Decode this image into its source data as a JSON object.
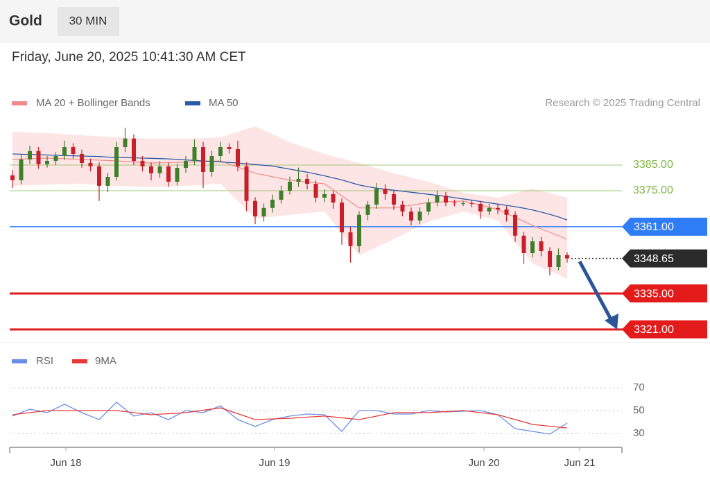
{
  "header": {
    "symbol": "Gold",
    "interval": "30 MIN",
    "timestamp": "Friday, June 20, 2025 10:41:30 AM CET"
  },
  "chart_data": [
    {
      "type": "candlestick",
      "source": "Research © 2025 Trading Central",
      "up_color": "#3f7f2a",
      "down_color": "#c8202a",
      "open": [
        3381.0,
        3379.1,
        3387.2,
        3390.4,
        3385.3,
        3386.6,
        3388.5,
        3392.0,
        3389.3,
        3385.8,
        3384.5,
        3376.9,
        3380.4,
        3392.0,
        3395.3,
        3386.6,
        3384.5,
        3381.8,
        3384.5,
        3378.5,
        3383.9,
        3386.6,
        3392.0,
        3382.3,
        3388.5,
        3392.0,
        3391.2,
        3384.5,
        3371.0,
        3365.0,
        3368.3,
        3371.5,
        3375.0,
        3378.5,
        3379.6,
        3377.7,
        3372.3,
        3373.7,
        3370.4,
        3358.8,
        3353.4,
        3365.6,
        3369.6,
        3375.8,
        3373.7,
        3369.6,
        3366.9,
        3363.4,
        3366.9,
        3370.4,
        3373.1,
        3370.4,
        3370.1,
        3370.1,
        3369.9,
        3366.9,
        3368.3,
        3367.7,
        3365.6,
        3357.5,
        3350.7,
        3355.3,
        3351.5,
        3345.3,
        3349.9
      ],
      "high": [
        3383,
        3389,
        3392.5,
        3392,
        3388.5,
        3390,
        3394.5,
        3393.5,
        3391,
        3387.5,
        3386,
        3382,
        3394,
        3399.5,
        3397,
        3388.5,
        3386,
        3386.5,
        3386,
        3385.5,
        3388.5,
        3395,
        3394,
        3390.5,
        3394,
        3393.5,
        3394.5,
        3386,
        3372.5,
        3370,
        3373.5,
        3377,
        3380.5,
        3384,
        3381.5,
        3379,
        3375.5,
        3375,
        3372,
        3361,
        3367,
        3371,
        3378,
        3377.5,
        3375,
        3371,
        3368.5,
        3368.5,
        3372,
        3375,
        3374.5,
        3371.5,
        3371,
        3371.5,
        3371,
        3370,
        3370,
        3369,
        3367,
        3359,
        3357,
        3357,
        3353,
        3352.5,
        3351
      ],
      "low": [
        3376,
        3377.5,
        3385.5,
        3383.5,
        3384,
        3385,
        3387,
        3387.5,
        3384,
        3382.5,
        3371,
        3374.5,
        3379,
        3390,
        3385,
        3382.5,
        3379,
        3380,
        3376.5,
        3377,
        3382,
        3385,
        3376,
        3380.5,
        3386.5,
        3389.5,
        3382.5,
        3367,
        3362,
        3363,
        3366.5,
        3370,
        3373.5,
        3376.5,
        3375.5,
        3370.5,
        3370.5,
        3368,
        3354,
        3347,
        3351,
        3363.5,
        3368,
        3371.5,
        3367.5,
        3365,
        3361.5,
        3362,
        3365.5,
        3369,
        3369,
        3369,
        3369,
        3368.5,
        3364,
        3365.5,
        3366,
        3363,
        3355,
        3346.5,
        3349,
        3349.5,
        3342,
        3344,
        3347
      ],
      "close": [
        3379.1,
        3387.2,
        3390.4,
        3385.3,
        3386.6,
        3388.5,
        3392.0,
        3389.3,
        3385.8,
        3384.5,
        3376.9,
        3380.4,
        3392.0,
        3395.3,
        3386.6,
        3384.5,
        3381.8,
        3384.5,
        3378.5,
        3383.9,
        3386.6,
        3392.0,
        3382.3,
        3388.5,
        3392.0,
        3391.2,
        3384.5,
        3371.0,
        3365.0,
        3368.3,
        3371.5,
        3375.0,
        3378.5,
        3379.6,
        3377.7,
        3372.3,
        3373.7,
        3370.4,
        3358.8,
        3353.4,
        3365.6,
        3369.6,
        3375.8,
        3373.7,
        3369.6,
        3366.9,
        3363.4,
        3366.9,
        3370.4,
        3373.1,
        3370.4,
        3370.1,
        3370.1,
        3369.9,
        3366.9,
        3368.3,
        3367.7,
        3365.6,
        3357.5,
        3350.7,
        3355.3,
        3351.5,
        3345.3,
        3349.9,
        3348.65
      ],
      "bollinger": {
        "name": "MA 20 + Bollinger Bands",
        "color": "#f08a8a",
        "band_color": "#fde0e0",
        "x": [
          0,
          4,
          8,
          12,
          16,
          20,
          24,
          28,
          32,
          36,
          40,
          44,
          48,
          52,
          56,
          60,
          64
        ],
        "upper": [
          3398.0,
          3397.4,
          3396.6,
          3395.8,
          3395.3,
          3395.3,
          3395.8,
          3400.1,
          3393.9,
          3389.3,
          3385.8,
          3381.8,
          3378.5,
          3374.2,
          3372.3,
          3375.8,
          3372.3
        ],
        "ma20": [
          3387.2,
          3387.7,
          3387.2,
          3386.6,
          3385.8,
          3386.1,
          3386.6,
          3381.8,
          3379.1,
          3377.7,
          3368.3,
          3368.3,
          3370.4,
          3371.0,
          3367.7,
          3361.5,
          3356.1
        ],
        "lower": [
          3376.9,
          3377.4,
          3377.7,
          3376.9,
          3376.4,
          3376.9,
          3377.7,
          3364.2,
          3365.6,
          3366.9,
          3349.9,
          3356.1,
          3362.9,
          3366.9,
          3363.4,
          3346.7,
          3340.7
        ]
      },
      "series": [
        {
          "name": "MA 50",
          "color": "#2b5aa6",
          "values": [
            3389.3,
            3389.2,
            3389.1,
            3389.0,
            3388.9,
            3388.8,
            3388.7,
            3388.6,
            3388.5,
            3388.4,
            3388.3,
            3388.1,
            3388.0,
            3387.9,
            3387.8,
            3387.7,
            3387.6,
            3387.5,
            3387.4,
            3387.2,
            3387.0,
            3386.8,
            3386.6,
            3386.4,
            3386.2,
            3386.0,
            3385.8,
            3385.5,
            3385.2,
            3384.9,
            3384.6,
            3384.0,
            3383.4,
            3382.8,
            3382.2,
            3381.5,
            3380.8,
            3380.0,
            3379.2,
            3378.2,
            3377.2,
            3376.6,
            3376.0,
            3375.6,
            3375.2,
            3374.8,
            3374.4,
            3374.0,
            3373.6,
            3373.2,
            3372.8,
            3372.3,
            3371.8,
            3371.3,
            3370.8,
            3370.3,
            3369.8,
            3369.3,
            3368.8,
            3368.2,
            3367.5,
            3366.7,
            3365.8,
            3364.8,
            3363.6
          ]
        }
      ],
      "levels": [
        {
          "value": 3385,
          "label": "3385.00",
          "color": "#7cb342",
          "box": false
        },
        {
          "value": 3375,
          "label": "3375.00",
          "color": "#7cb342",
          "box": false
        },
        {
          "value": 3361,
          "label": "3361.00",
          "color": "#2f7df6",
          "box": true
        },
        {
          "value": 3348.65,
          "label": "3348.65",
          "color": "#2b2b2b",
          "box": true,
          "dotted": true
        },
        {
          "value": 3335,
          "label": "3335.00",
          "color": "#e31b1b",
          "box": true
        },
        {
          "value": 3321,
          "label": "3321.00",
          "color": "#e31b1b",
          "box": true
        }
      ],
      "xlim": [
        0,
        70.32
      ],
      "ylim": [
        3316,
        3402
      ]
    },
    {
      "type": "line",
      "series": [
        {
          "name": "RSI",
          "color": "#6a8ee8",
          "x": [
            0,
            2,
            4,
            6,
            8,
            10,
            12,
            14,
            16,
            18,
            20,
            22,
            24,
            26,
            28,
            30,
            32,
            34,
            36,
            38,
            40,
            42,
            44,
            46,
            48,
            50,
            52,
            54,
            56,
            58,
            60,
            62,
            64
          ],
          "values": [
            45.2,
            51.2,
            48.2,
            55.5,
            48.2,
            42.1,
            57.3,
            45.2,
            48.2,
            42.1,
            50,
            48.2,
            54.2,
            42.1,
            36.1,
            42.1,
            45.2,
            47.0,
            46.4,
            31.8,
            50,
            50,
            47.0,
            47.0,
            50,
            48.8,
            49.4,
            50,
            46.4,
            34.2,
            31.8,
            29.4,
            39.1
          ]
        },
        {
          "name": "9MA",
          "color": "#e53935",
          "x": [
            0,
            4,
            8,
            12,
            16,
            20,
            24,
            28,
            32,
            36,
            40,
            44,
            48,
            52,
            56,
            60,
            64
          ],
          "values": [
            46.4,
            50,
            50,
            50,
            46.4,
            48.2,
            52.4,
            42.1,
            43.3,
            45.2,
            42.1,
            48.2,
            48.2,
            50,
            46.4,
            37.9,
            34.8
          ]
        }
      ],
      "xlim": [
        0,
        70.32
      ],
      "xticks": [
        {
          "value": 6.16,
          "label": "Jun 18"
        },
        {
          "value": 30.24,
          "label": "Jun 19"
        },
        {
          "value": 54.4,
          "label": "Jun 20"
        },
        {
          "value": 65.44,
          "label": "Jun 21"
        }
      ],
      "ylim": [
        18,
        78.5
      ],
      "yticks": [
        30,
        50,
        70
      ],
      "grid": true
    }
  ]
}
